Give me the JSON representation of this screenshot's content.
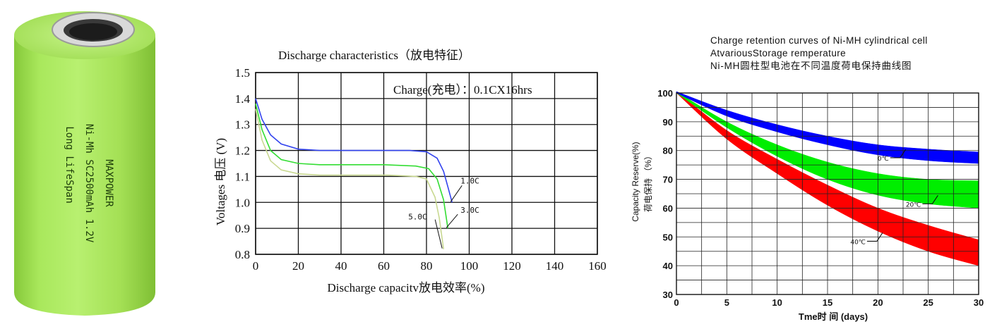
{
  "battery": {
    "brand": "MAXPOWER",
    "model": "Ni-Mh SC2500mAh 1.2V",
    "tagline": "Long LifeSpan",
    "body_color": "#a7e65a",
    "accent_color": "#8fd43a"
  },
  "chart_data": [
    {
      "type": "line",
      "title": "Discharge characteristics（放电特征）",
      "xlabel": "Discharge capacitv放电效率(%)",
      "ylabel": "Voltages 电压 (V)",
      "xlim": [
        0,
        160
      ],
      "ylim": [
        0.8,
        1.5
      ],
      "xticks": [
        "0",
        "20",
        "40",
        "60",
        "80",
        "100",
        "120",
        "140",
        "160"
      ],
      "yticks": [
        "0.8",
        "0.9",
        "1.0",
        "1.1",
        "1.2",
        "1.3",
        "1.4",
        "1.5"
      ],
      "grid": true,
      "annotation": "Charge(充电）：0.1CX16hrs",
      "series": [
        {
          "name": "1.0C",
          "color": "#3344ee",
          "points": [
            [
              0,
              1.4
            ],
            [
              3,
              1.32
            ],
            [
              7,
              1.26
            ],
            [
              12,
              1.225
            ],
            [
              20,
              1.205
            ],
            [
              30,
              1.2
            ],
            [
              60,
              1.2
            ],
            [
              72,
              1.2
            ],
            [
              80,
              1.195
            ],
            [
              85,
              1.17
            ],
            [
              88,
              1.12
            ],
            [
              90,
              1.06
            ],
            [
              92,
              1.0
            ]
          ]
        },
        {
          "name": "3.0C",
          "color": "#33dd33",
          "points": [
            [
              0,
              1.38
            ],
            [
              3,
              1.28
            ],
            [
              7,
              1.2
            ],
            [
              12,
              1.165
            ],
            [
              20,
              1.15
            ],
            [
              30,
              1.145
            ],
            [
              60,
              1.145
            ],
            [
              75,
              1.14
            ],
            [
              81,
              1.13
            ],
            [
              85,
              1.09
            ],
            [
              88,
              1.01
            ],
            [
              90,
              0.9
            ]
          ]
        },
        {
          "name": "5.0C",
          "color": "#c8d890",
          "points": [
            [
              0,
              1.36
            ],
            [
              3,
              1.24
            ],
            [
              7,
              1.16
            ],
            [
              12,
              1.125
            ],
            [
              20,
              1.11
            ],
            [
              30,
              1.105
            ],
            [
              62,
              1.105
            ],
            [
              75,
              1.1
            ],
            [
              80,
              1.09
            ],
            [
              84,
              1.02
            ],
            [
              86,
              0.94
            ],
            [
              88,
              0.82
            ]
          ]
        }
      ]
    },
    {
      "type": "area",
      "title_lines": [
        "Charge retention curves of Ni-MH cylindrical cell",
        "AtvariousStorage remperature",
        "Ni-MH圆柱型电池在不同温度荷电保持曲线图"
      ],
      "xlabel": "Tme时 间  (days)",
      "ylabel": "Capacity Reserve(%)",
      "ylabel2": "荷电保持 （%）",
      "xlim": [
        0,
        30
      ],
      "ylim": [
        30,
        100
      ],
      "xticks": [
        "0",
        "5",
        "10",
        "15",
        "20",
        "25",
        "30"
      ],
      "yticks": [
        "30",
        "40",
        "50",
        "60",
        "70",
        "80",
        "90",
        "100"
      ],
      "grid": true,
      "series": [
        {
          "name": "0℃",
          "color": "#0000ff",
          "upper": [
            [
              0,
              100.5
            ],
            [
              5,
              94
            ],
            [
              10,
              89
            ],
            [
              15,
              85
            ],
            [
              20,
              82
            ],
            [
              25,
              80.5
            ],
            [
              30,
              79.5
            ]
          ],
          "lower": [
            [
              0,
              100
            ],
            [
              5,
              92
            ],
            [
              10,
              86.5
            ],
            [
              15,
              82
            ],
            [
              20,
              78.5
            ],
            [
              25,
              76.5
            ],
            [
              30,
              75.5
            ]
          ],
          "label_at": [
            21.5,
            77.5
          ]
        },
        {
          "name": "20℃",
          "color": "#00ee00",
          "upper": [
            [
              0,
              100.5
            ],
            [
              5,
              90
            ],
            [
              10,
              82
            ],
            [
              15,
              76
            ],
            [
              20,
              72
            ],
            [
              25,
              70
            ],
            [
              30,
              69.5
            ]
          ],
          "lower": [
            [
              0,
              100
            ],
            [
              5,
              88
            ],
            [
              10,
              78
            ],
            [
              15,
              70
            ],
            [
              20,
              64.5
            ],
            [
              25,
              61.5
            ],
            [
              30,
              60
            ]
          ],
          "label_at": [
            24.7,
            61.5
          ]
        },
        {
          "name": "40℃",
          "color": "#ff0000",
          "upper": [
            [
              0,
              100.5
            ],
            [
              5,
              87
            ],
            [
              10,
              77
            ],
            [
              15,
              68
            ],
            [
              20,
              60
            ],
            [
              25,
              54
            ],
            [
              30,
              49
            ]
          ],
          "lower": [
            [
              0,
              100
            ],
            [
              5,
              84
            ],
            [
              10,
              72
            ],
            [
              15,
              61
            ],
            [
              20,
              52
            ],
            [
              25,
              45
            ],
            [
              30,
              40
            ]
          ],
          "label_at": [
            19.2,
            48.5
          ]
        }
      ]
    }
  ]
}
